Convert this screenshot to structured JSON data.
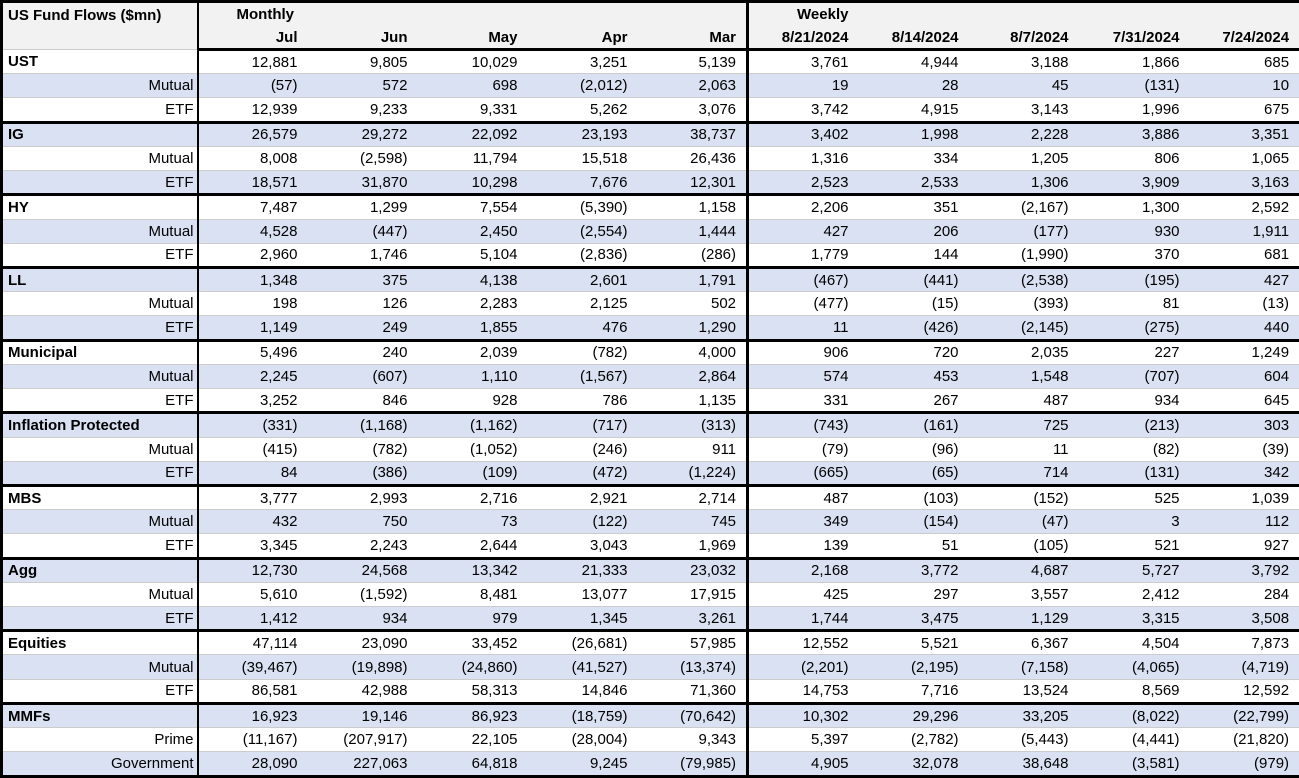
{
  "table": {
    "title": "US Fund Flows ($mn)",
    "monthly_label": "Monthly",
    "weekly_label": "Weekly",
    "monthly_columns": [
      "Jul",
      "Jun",
      "May",
      "Apr",
      "Mar"
    ],
    "weekly_columns": [
      "8/21/2024",
      "8/14/2024",
      "8/7/2024",
      "7/31/2024",
      "7/24/2024"
    ],
    "colors": {
      "band": "#d9e1f2",
      "header_bg": "#f2f2f2",
      "border": "#000000"
    },
    "groups": [
      {
        "name": "UST",
        "rows": [
          {
            "label": "UST",
            "monthly": [
              "12,881",
              "9,805",
              "10,029",
              "3,251",
              "5,139"
            ],
            "weekly": [
              "3,761",
              "4,944",
              "3,188",
              "1,866",
              "685"
            ]
          },
          {
            "label": "Mutual",
            "monthly": [
              "(57)",
              "572",
              "698",
              "(2,012)",
              "2,063"
            ],
            "weekly": [
              "19",
              "28",
              "45",
              "(131)",
              "10"
            ]
          },
          {
            "label": "ETF",
            "monthly": [
              "12,939",
              "9,233",
              "9,331",
              "5,262",
              "3,076"
            ],
            "weekly": [
              "3,742",
              "4,915",
              "3,143",
              "1,996",
              "675"
            ]
          }
        ]
      },
      {
        "name": "IG",
        "rows": [
          {
            "label": "IG",
            "monthly": [
              "26,579",
              "29,272",
              "22,092",
              "23,193",
              "38,737"
            ],
            "weekly": [
              "3,402",
              "1,998",
              "2,228",
              "3,886",
              "3,351"
            ]
          },
          {
            "label": "Mutual",
            "monthly": [
              "8,008",
              "(2,598)",
              "11,794",
              "15,518",
              "26,436"
            ],
            "weekly": [
              "1,316",
              "334",
              "1,205",
              "806",
              "1,065"
            ]
          },
          {
            "label": "ETF",
            "monthly": [
              "18,571",
              "31,870",
              "10,298",
              "7,676",
              "12,301"
            ],
            "weekly": [
              "2,523",
              "2,533",
              "1,306",
              "3,909",
              "3,163"
            ]
          }
        ]
      },
      {
        "name": "HY",
        "rows": [
          {
            "label": "HY",
            "monthly": [
              "7,487",
              "1,299",
              "7,554",
              "(5,390)",
              "1,158"
            ],
            "weekly": [
              "2,206",
              "351",
              "(2,167)",
              "1,300",
              "2,592"
            ]
          },
          {
            "label": "Mutual",
            "monthly": [
              "4,528",
              "(447)",
              "2,450",
              "(2,554)",
              "1,444"
            ],
            "weekly": [
              "427",
              "206",
              "(177)",
              "930",
              "1,911"
            ]
          },
          {
            "label": "ETF",
            "monthly": [
              "2,960",
              "1,746",
              "5,104",
              "(2,836)",
              "(286)"
            ],
            "weekly": [
              "1,779",
              "144",
              "(1,990)",
              "370",
              "681"
            ]
          }
        ]
      },
      {
        "name": "LL",
        "rows": [
          {
            "label": "LL",
            "monthly": [
              "1,348",
              "375",
              "4,138",
              "2,601",
              "1,791"
            ],
            "weekly": [
              "(467)",
              "(441)",
              "(2,538)",
              "(195)",
              "427"
            ]
          },
          {
            "label": "Mutual",
            "monthly": [
              "198",
              "126",
              "2,283",
              "2,125",
              "502"
            ],
            "weekly": [
              "(477)",
              "(15)",
              "(393)",
              "81",
              "(13)"
            ]
          },
          {
            "label": "ETF",
            "monthly": [
              "1,149",
              "249",
              "1,855",
              "476",
              "1,290"
            ],
            "weekly": [
              "11",
              "(426)",
              "(2,145)",
              "(275)",
              "440"
            ]
          }
        ]
      },
      {
        "name": "Municipal",
        "rows": [
          {
            "label": "Municipal",
            "monthly": [
              "5,496",
              "240",
              "2,039",
              "(782)",
              "4,000"
            ],
            "weekly": [
              "906",
              "720",
              "2,035",
              "227",
              "1,249"
            ]
          },
          {
            "label": "Mutual",
            "monthly": [
              "2,245",
              "(607)",
              "1,110",
              "(1,567)",
              "2,864"
            ],
            "weekly": [
              "574",
              "453",
              "1,548",
              "(707)",
              "604"
            ]
          },
          {
            "label": "ETF",
            "monthly": [
              "3,252",
              "846",
              "928",
              "786",
              "1,135"
            ],
            "weekly": [
              "331",
              "267",
              "487",
              "934",
              "645"
            ]
          }
        ]
      },
      {
        "name": "Inflation Protected",
        "rows": [
          {
            "label": "Inflation Protected",
            "monthly": [
              "(331)",
              "(1,168)",
              "(1,162)",
              "(717)",
              "(313)"
            ],
            "weekly": [
              "(743)",
              "(161)",
              "725",
              "(213)",
              "303"
            ]
          },
          {
            "label": "Mutual",
            "monthly": [
              "(415)",
              "(782)",
              "(1,052)",
              "(246)",
              "911"
            ],
            "weekly": [
              "(79)",
              "(96)",
              "11",
              "(82)",
              "(39)"
            ]
          },
          {
            "label": "ETF",
            "monthly": [
              "84",
              "(386)",
              "(109)",
              "(472)",
              "(1,224)"
            ],
            "weekly": [
              "(665)",
              "(65)",
              "714",
              "(131)",
              "342"
            ]
          }
        ]
      },
      {
        "name": "MBS",
        "rows": [
          {
            "label": "MBS",
            "monthly": [
              "3,777",
              "2,993",
              "2,716",
              "2,921",
              "2,714"
            ],
            "weekly": [
              "487",
              "(103)",
              "(152)",
              "525",
              "1,039"
            ]
          },
          {
            "label": "Mutual",
            "monthly": [
              "432",
              "750",
              "73",
              "(122)",
              "745"
            ],
            "weekly": [
              "349",
              "(154)",
              "(47)",
              "3",
              "112"
            ]
          },
          {
            "label": "ETF",
            "monthly": [
              "3,345",
              "2,243",
              "2,644",
              "3,043",
              "1,969"
            ],
            "weekly": [
              "139",
              "51",
              "(105)",
              "521",
              "927"
            ]
          }
        ]
      },
      {
        "name": "Agg",
        "rows": [
          {
            "label": "Agg",
            "monthly": [
              "12,730",
              "24,568",
              "13,342",
              "21,333",
              "23,032"
            ],
            "weekly": [
              "2,168",
              "3,772",
              "4,687",
              "5,727",
              "3,792"
            ]
          },
          {
            "label": "Mutual",
            "monthly": [
              "5,610",
              "(1,592)",
              "8,481",
              "13,077",
              "17,915"
            ],
            "weekly": [
              "425",
              "297",
              "3,557",
              "2,412",
              "284"
            ]
          },
          {
            "label": "ETF",
            "monthly": [
              "1,412",
              "934",
              "979",
              "1,345",
              "3,261"
            ],
            "weekly": [
              "1,744",
              "3,475",
              "1,129",
              "3,315",
              "3,508"
            ]
          }
        ]
      },
      {
        "name": "Equities",
        "rows": [
          {
            "label": "Equities",
            "monthly": [
              "47,114",
              "23,090",
              "33,452",
              "(26,681)",
              "57,985"
            ],
            "weekly": [
              "12,552",
              "5,521",
              "6,367",
              "4,504",
              "7,873"
            ]
          },
          {
            "label": "Mutual",
            "monthly": [
              "(39,467)",
              "(19,898)",
              "(24,860)",
              "(41,527)",
              "(13,374)"
            ],
            "weekly": [
              "(2,201)",
              "(2,195)",
              "(7,158)",
              "(4,065)",
              "(4,719)"
            ]
          },
          {
            "label": "ETF",
            "monthly": [
              "86,581",
              "42,988",
              "58,313",
              "14,846",
              "71,360"
            ],
            "weekly": [
              "14,753",
              "7,716",
              "13,524",
              "8,569",
              "12,592"
            ]
          }
        ]
      },
      {
        "name": "MMFs",
        "rows": [
          {
            "label": "MMFs",
            "monthly": [
              "16,923",
              "19,146",
              "86,923",
              "(18,759)",
              "(70,642)"
            ],
            "weekly": [
              "10,302",
              "29,296",
              "33,205",
              "(8,022)",
              "(22,799)"
            ]
          },
          {
            "label": "Prime",
            "monthly": [
              "(11,167)",
              "(207,917)",
              "22,105",
              "(28,004)",
              "9,343"
            ],
            "weekly": [
              "5,397",
              "(2,782)",
              "(5,443)",
              "(4,441)",
              "(21,820)"
            ]
          },
          {
            "label": "Government",
            "monthly": [
              "28,090",
              "227,063",
              "64,818",
              "9,245",
              "(79,985)"
            ],
            "weekly": [
              "4,905",
              "32,078",
              "38,648",
              "(3,581)",
              "(979)"
            ]
          }
        ]
      }
    ]
  }
}
